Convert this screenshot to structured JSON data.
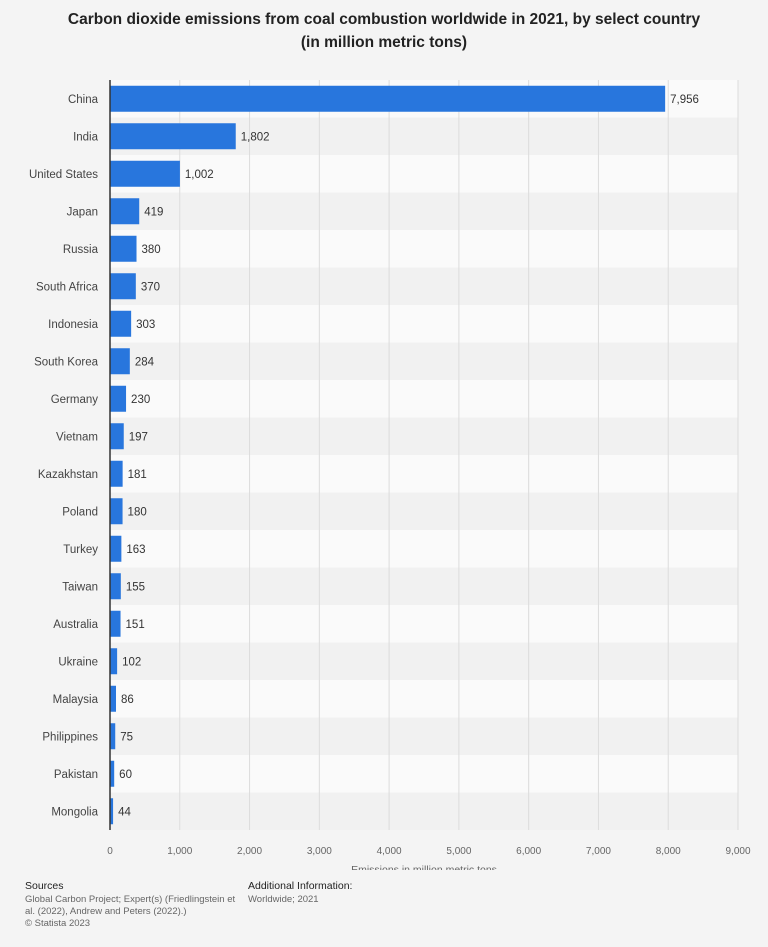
{
  "title_line1": "Carbon dioxide emissions from coal combustion worldwide in 2021, by select country",
  "title_line2": "(in million metric tons)",
  "colors": {
    "bar": "#2876dd",
    "band_light": "#fafafa",
    "band_dark": "#f1f1f1",
    "grid": "#dcdcdc",
    "axis": "#333333"
  },
  "chart_data": {
    "type": "bar",
    "orientation": "horizontal",
    "categories": [
      "China",
      "India",
      "United States",
      "Japan",
      "Russia",
      "South Africa",
      "Indonesia",
      "South Korea",
      "Germany",
      "Vietnam",
      "Kazakhstan",
      "Poland",
      "Turkey",
      "Taiwan",
      "Australia",
      "Ukraine",
      "Malaysia",
      "Philippines",
      "Pakistan",
      "Mongolia"
    ],
    "values": [
      7956,
      1802,
      1002,
      419,
      380,
      370,
      303,
      284,
      230,
      197,
      181,
      180,
      163,
      155,
      151,
      102,
      86,
      75,
      60,
      44
    ],
    "value_labels": [
      "7,956",
      "1,802",
      "1,002",
      "419",
      "380",
      "370",
      "303",
      "284",
      "230",
      "197",
      "181",
      "180",
      "163",
      "155",
      "151",
      "102",
      "86",
      "75",
      "60",
      "44"
    ],
    "xlabel": "Emissions in million metric tons",
    "xlim": [
      0,
      9000
    ],
    "xticks": [
      0,
      1000,
      2000,
      3000,
      4000,
      5000,
      6000,
      7000,
      8000,
      9000
    ],
    "xtick_labels": [
      "0",
      "1,000",
      "2,000",
      "3,000",
      "4,000",
      "5,000",
      "6,000",
      "7,000",
      "8,000",
      "9,000"
    ],
    "grid": true
  },
  "footer": {
    "sources_heading": "Sources",
    "sources_line1": "Global Carbon Project; Expert(s) (Friedlingstein et",
    "sources_line2": "al. (2022), Andrew and Peters (2022).)",
    "sources_line3": "© Statista 2023",
    "additional_heading": "Additional Information:",
    "additional_line1": "Worldwide; 2021"
  }
}
